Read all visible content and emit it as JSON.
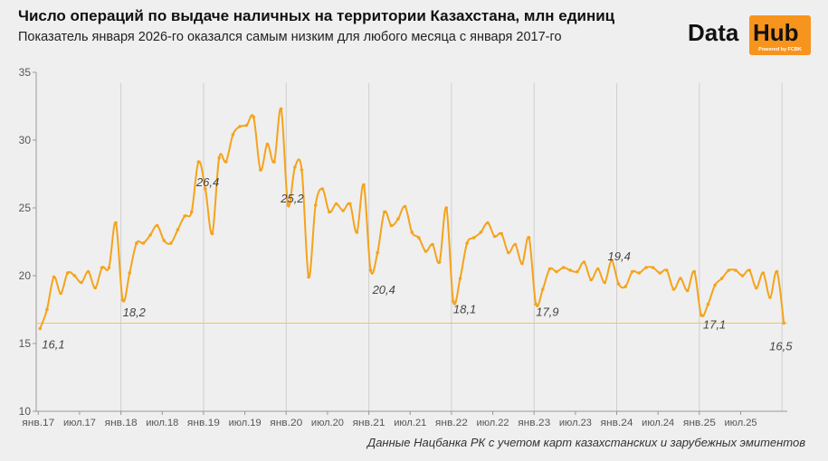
{
  "header": {
    "title": "Число операций по выдаче наличных на территории Казахстана, млн единиц",
    "subtitle": "Показатель января 2026-го оказался самым низким для любого месяца с января 2017-го"
  },
  "logo": {
    "word1": "Data",
    "word2": "Hub",
    "powered": "Powered by FCBK",
    "accent": "#f7941d"
  },
  "source": "Данные Нацбанка РК с учетом карт казахстанских и зарубежных эмитентов",
  "chart_data": {
    "type": "line",
    "title": "Число операций по выдаче наличных на территории Казахстана, млн единиц",
    "x_start": "2017-01",
    "x_end": "2026-01",
    "x_ticks": [
      "янв.17",
      "июл.17",
      "янв.18",
      "июл.18",
      "янв.19",
      "июл.19",
      "янв.20",
      "июл.20",
      "янв.21",
      "июл.21",
      "янв.22",
      "июл.22",
      "янв.23",
      "июл.23",
      "янв.24",
      "июл.24",
      "янв.25",
      "июл.25"
    ],
    "y_ticks": [
      10,
      15,
      20,
      25,
      30,
      35
    ],
    "ylim": [
      10,
      35
    ],
    "grid": "vertical lines at January of each year",
    "line_color": "#f5a31a",
    "reference_line": {
      "value": 16.5,
      "color": "#f5c060"
    },
    "values": [
      16.1,
      17.5,
      19.9,
      18.7,
      20.2,
      20.0,
      19.5,
      20.3,
      19.1,
      20.6,
      20.6,
      23.9,
      18.2,
      20.2,
      22.4,
      22.4,
      23.0,
      23.7,
      22.6,
      22.4,
      23.4,
      24.4,
      24.7,
      28.4,
      26.4,
      23.1,
      28.7,
      28.4,
      30.4,
      31.0,
      31.1,
      31.7,
      27.8,
      29.7,
      28.4,
      32.3,
      25.2,
      28.0,
      27.8,
      19.9,
      25.2,
      26.4,
      24.7,
      25.3,
      24.8,
      25.3,
      23.2,
      26.7,
      20.4,
      21.7,
      24.7,
      23.7,
      24.2,
      25.1,
      23.2,
      22.8,
      21.8,
      22.3,
      21.0,
      25.0,
      18.1,
      19.8,
      22.4,
      22.8,
      23.2,
      23.9,
      22.9,
      23.1,
      21.7,
      22.3,
      20.9,
      22.8,
      17.9,
      19.0,
      20.5,
      20.3,
      20.6,
      20.4,
      20.3,
      21.0,
      19.7,
      20.5,
      19.5,
      21.1,
      19.4,
      19.2,
      20.3,
      20.2,
      20.6,
      20.6,
      20.2,
      20.4,
      19.0,
      19.8,
      18.9,
      20.3,
      17.1,
      17.9,
      19.3,
      19.8,
      20.4,
      20.4,
      20.0,
      20.4,
      19.1,
      20.2,
      18.4,
      20.3,
      16.5
    ],
    "annotations": [
      {
        "month_index": 0,
        "text": "16,1"
      },
      {
        "month_index": 12,
        "text": "18,2"
      },
      {
        "month_index": 24,
        "text": "26,4"
      },
      {
        "month_index": 36,
        "text": "25,2"
      },
      {
        "month_index": 48,
        "text": "20,4"
      },
      {
        "month_index": 60,
        "text": "18,1"
      },
      {
        "month_index": 72,
        "text": "17,9"
      },
      {
        "month_index": 84,
        "text": "19,4"
      },
      {
        "month_index": 96,
        "text": "17,1"
      },
      {
        "month_index": 108,
        "text": "16,5"
      }
    ]
  }
}
